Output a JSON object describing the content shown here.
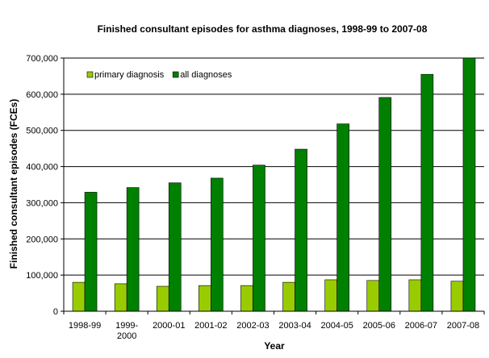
{
  "chart_data": {
    "type": "bar",
    "title": "Finished consultant episodes for asthma diagnoses, 1998-99 to 2007-08",
    "xlabel": "Year",
    "ylabel": "Finished consultant episodes (FCEs)",
    "categories": [
      [
        "1998-99"
      ],
      [
        "1999-",
        "2000"
      ],
      [
        "2000-01"
      ],
      [
        "2001-02"
      ],
      [
        "2002-03"
      ],
      [
        "2003-04"
      ],
      [
        "2004-05"
      ],
      [
        "2005-06"
      ],
      [
        "2006-07"
      ],
      [
        "2007-08"
      ]
    ],
    "series": [
      {
        "name": "primary diagnosis",
        "color": "#99CC00",
        "values": [
          80000,
          76000,
          69000,
          71000,
          71000,
          80000,
          87000,
          85000,
          87000,
          83000
        ]
      },
      {
        "name": "all diagnoses",
        "color": "#008000",
        "values": [
          329000,
          342000,
          355000,
          368000,
          404000,
          448000,
          518000,
          591000,
          655000,
          700000
        ]
      }
    ],
    "ylim": [
      0,
      700000
    ],
    "yticks": [
      0,
      100000,
      200000,
      300000,
      400000,
      500000,
      600000,
      700000
    ],
    "ytick_labels": [
      "0",
      "100,000",
      "200,000",
      "300,000",
      "400,000",
      "500,000",
      "600,000",
      "700,000"
    ],
    "grid": "horizontal",
    "legend_position": "top-left"
  }
}
